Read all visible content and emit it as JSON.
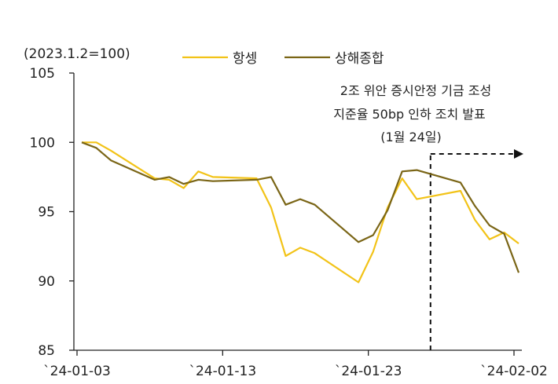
{
  "chart_data": {
    "type": "line",
    "unit_label": "(2023.1.2=100)",
    "x_dates": [
      "2024-01-03",
      "2024-01-04",
      "2024-01-05",
      "2024-01-08",
      "2024-01-09",
      "2024-01-10",
      "2024-01-11",
      "2024-01-12",
      "2024-01-15",
      "2024-01-16",
      "2024-01-17",
      "2024-01-18",
      "2024-01-19",
      "2024-01-22",
      "2024-01-23",
      "2024-01-24",
      "2024-01-25",
      "2024-01-26",
      "2024-01-29",
      "2024-01-30",
      "2024-01-31",
      "2024-02-01",
      "2024-02-02"
    ],
    "x_index": [
      0,
      1,
      2,
      5,
      6,
      7,
      8,
      9,
      12,
      13,
      14,
      15,
      16,
      19,
      20,
      21,
      22,
      23,
      26,
      27,
      28,
      29,
      30
    ],
    "x_ticks": [
      {
        "index": 0,
        "label": "`24-01-03"
      },
      {
        "index": 10,
        "label": "`24-01-13"
      },
      {
        "index": 20,
        "label": "`24-01-23"
      },
      {
        "index": 30,
        "label": "`24-02-02"
      }
    ],
    "ylim": [
      85,
      105
    ],
    "y_ticks": [
      85,
      90,
      95,
      100,
      105
    ],
    "series": [
      {
        "name": "항셍",
        "color": "#f2c318",
        "values": [
          100.0,
          100.0,
          99.4,
          97.4,
          97.3,
          96.7,
          97.9,
          97.5,
          97.4,
          95.3,
          91.8,
          92.4,
          92.0,
          89.9,
          92.1,
          95.3,
          97.4,
          95.9,
          96.5,
          94.4,
          93.0,
          93.5,
          92.7
        ]
      },
      {
        "name": "상해종합",
        "color": "#7a6516",
        "values": [
          100.0,
          99.6,
          98.7,
          97.3,
          97.5,
          97.0,
          97.3,
          97.2,
          97.3,
          97.5,
          95.5,
          95.9,
          95.5,
          92.8,
          93.3,
          95.1,
          97.9,
          98.0,
          97.1,
          95.4,
          94.0,
          93.4,
          90.6
        ]
      }
    ],
    "annotation": {
      "lines": [
        "2조 위안 증시안정 기금 조성",
        "지준율 50bp 인하 조치 발표",
        "(1월 24일)"
      ],
      "x_index": 24
    }
  }
}
